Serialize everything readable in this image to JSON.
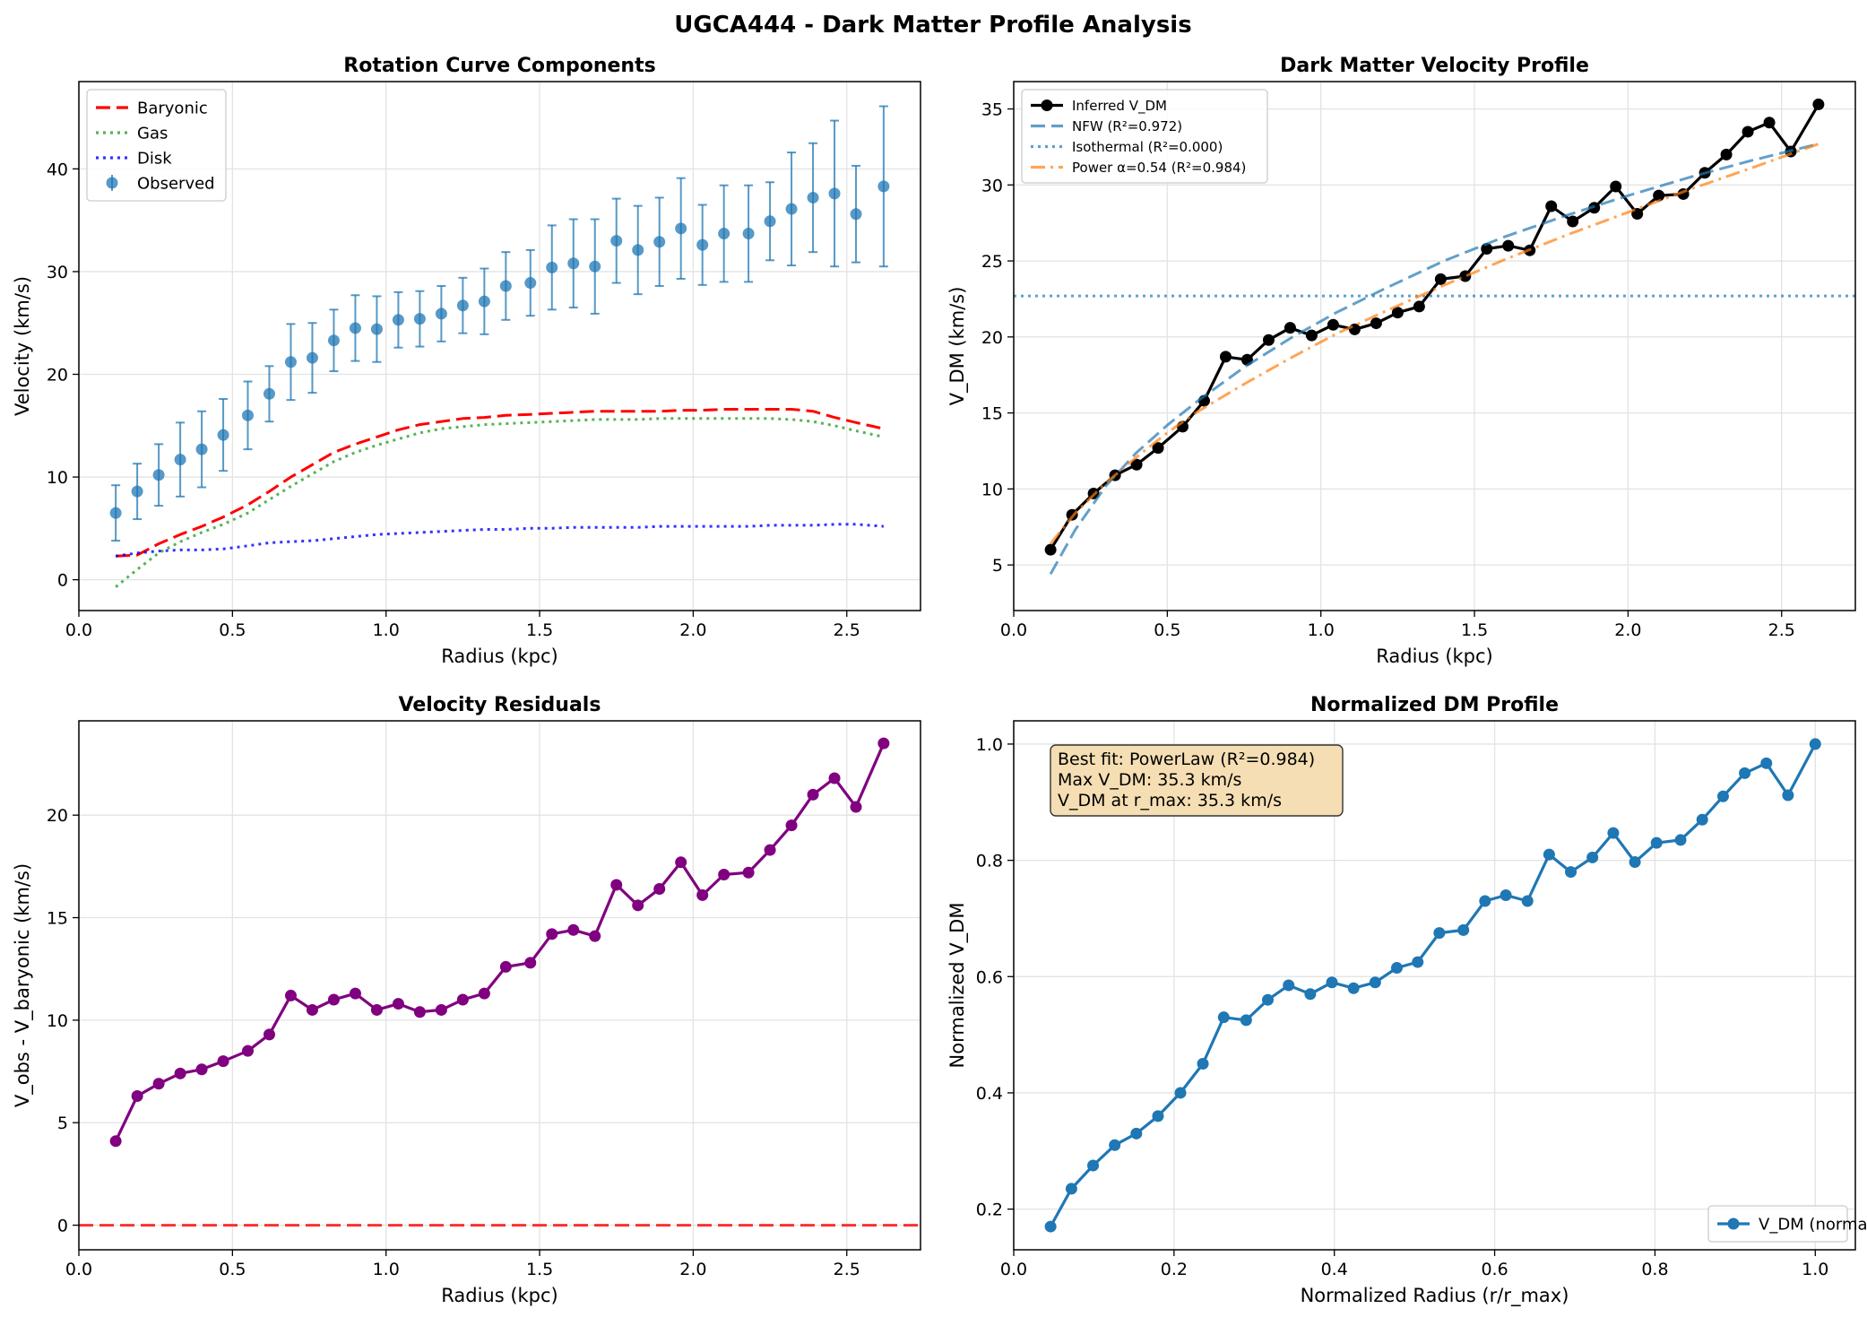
{
  "figure": {
    "title": "UGCA444 - Dark Matter Profile Analysis"
  },
  "colors": {
    "observed": "#1f77b4",
    "baryonic": "#ff0000",
    "gas": "#2ca02c",
    "disk": "#0000ff",
    "inferred": "#000000",
    "nfw": "#1f77b4",
    "isothermal": "#1f77b4",
    "power": "#ff7f0e",
    "residuals": "#800080",
    "zero_line": "#ff0000",
    "normalized": "#1f77b4",
    "annot_bg": "#f5deb3"
  },
  "chart_data": [
    {
      "type": "line",
      "title": "Rotation Curve Components",
      "xlabel": "Radius (kpc)",
      "ylabel": "Velocity (km/s)",
      "xlim": [
        0.0,
        2.74
      ],
      "ylim": [
        -3.0,
        48.5
      ],
      "xticks": [
        0.0,
        0.5,
        1.0,
        1.5,
        2.0,
        2.5
      ],
      "xtick_labels": [
        "0.0",
        "0.5",
        "1.0",
        "1.5",
        "2.0",
        "2.5"
      ],
      "yticks": [
        0,
        10,
        20,
        30,
        40
      ],
      "ytick_labels": [
        "0",
        "10",
        "20",
        "30",
        "40"
      ],
      "grid": true,
      "legend": "upper-left",
      "series": [
        {
          "name": "Baryonic",
          "kind": "line",
          "style": "dashed",
          "color_key": "baryonic",
          "x": [
            0.12,
            0.19,
            0.26,
            0.33,
            0.4,
            0.47,
            0.55,
            0.62,
            0.69,
            0.76,
            0.83,
            0.9,
            0.97,
            1.04,
            1.11,
            1.18,
            1.25,
            1.32,
            1.39,
            1.47,
            1.54,
            1.61,
            1.68,
            1.75,
            1.82,
            1.89,
            1.96,
            2.03,
            2.1,
            2.18,
            2.25,
            2.32,
            2.39,
            2.46,
            2.53,
            2.62
          ],
          "y": [
            2.3,
            2.4,
            3.5,
            4.4,
            5.2,
            6.1,
            7.3,
            8.6,
            10.0,
            11.2,
            12.4,
            13.2,
            13.9,
            14.6,
            15.1,
            15.4,
            15.7,
            15.8,
            16.0,
            16.1,
            16.2,
            16.3,
            16.4,
            16.4,
            16.4,
            16.4,
            16.5,
            16.5,
            16.6,
            16.6,
            16.6,
            16.6,
            16.4,
            15.8,
            15.3,
            14.7
          ]
        },
        {
          "name": "Gas",
          "kind": "line",
          "style": "dotted",
          "color_key": "gas",
          "x": [
            0.12,
            0.19,
            0.26,
            0.33,
            0.4,
            0.47,
            0.55,
            0.62,
            0.69,
            0.76,
            0.83,
            0.9,
            0.97,
            1.04,
            1.11,
            1.18,
            1.25,
            1.32,
            1.39,
            1.47,
            1.54,
            1.61,
            1.68,
            1.75,
            1.82,
            1.89,
            1.96,
            2.03,
            2.1,
            2.18,
            2.25,
            2.32,
            2.39,
            2.46,
            2.53,
            2.62
          ],
          "y": [
            -0.7,
            1.0,
            2.6,
            3.7,
            4.6,
            5.4,
            6.5,
            7.8,
            9.1,
            10.3,
            11.5,
            12.4,
            13.1,
            13.7,
            14.3,
            14.7,
            14.9,
            15.1,
            15.2,
            15.3,
            15.4,
            15.5,
            15.6,
            15.6,
            15.6,
            15.7,
            15.7,
            15.7,
            15.7,
            15.7,
            15.7,
            15.6,
            15.4,
            15.0,
            14.5,
            13.9
          ]
        },
        {
          "name": "Disk",
          "kind": "line",
          "style": "dotted",
          "color_key": "disk",
          "x": [
            0.12,
            0.19,
            0.26,
            0.33,
            0.4,
            0.47,
            0.55,
            0.62,
            0.69,
            0.76,
            0.83,
            0.9,
            0.97,
            1.04,
            1.11,
            1.18,
            1.25,
            1.32,
            1.39,
            1.47,
            1.54,
            1.61,
            1.68,
            1.75,
            1.82,
            1.89,
            1.96,
            2.03,
            2.1,
            2.18,
            2.25,
            2.32,
            2.39,
            2.46,
            2.53,
            2.62
          ],
          "y": [
            2.3,
            2.6,
            2.8,
            2.9,
            2.9,
            3.0,
            3.3,
            3.6,
            3.7,
            3.8,
            4.0,
            4.2,
            4.4,
            4.5,
            4.6,
            4.7,
            4.8,
            4.9,
            4.9,
            5.0,
            5.0,
            5.1,
            5.1,
            5.1,
            5.1,
            5.2,
            5.2,
            5.2,
            5.2,
            5.2,
            5.3,
            5.3,
            5.3,
            5.4,
            5.4,
            5.2
          ]
        },
        {
          "name": "Observed",
          "kind": "errorbar",
          "color_key": "observed",
          "x": [
            0.12,
            0.19,
            0.26,
            0.33,
            0.4,
            0.47,
            0.55,
            0.62,
            0.69,
            0.76,
            0.83,
            0.9,
            0.97,
            1.04,
            1.11,
            1.18,
            1.25,
            1.32,
            1.39,
            1.47,
            1.54,
            1.61,
            1.68,
            1.75,
            1.82,
            1.89,
            1.96,
            2.03,
            2.1,
            2.18,
            2.25,
            2.32,
            2.39,
            2.46,
            2.53,
            2.62
          ],
          "y": [
            6.5,
            8.6,
            10.2,
            11.7,
            12.7,
            14.1,
            16.0,
            18.1,
            21.2,
            21.6,
            23.3,
            24.5,
            24.4,
            25.3,
            25.4,
            25.9,
            26.7,
            27.1,
            28.6,
            28.9,
            30.4,
            30.8,
            30.5,
            33.0,
            32.1,
            32.9,
            34.2,
            32.6,
            33.7,
            33.7,
            34.9,
            36.1,
            37.2,
            37.6,
            35.6,
            38.3
          ],
          "err": [
            2.7,
            2.7,
            3.0,
            3.6,
            3.7,
            3.5,
            3.3,
            2.7,
            3.7,
            3.4,
            3.0,
            3.2,
            3.2,
            2.7,
            2.7,
            2.7,
            2.7,
            3.2,
            3.3,
            3.2,
            4.1,
            4.3,
            4.6,
            4.1,
            4.3,
            4.3,
            4.9,
            3.9,
            4.7,
            4.7,
            3.8,
            5.5,
            5.3,
            7.1,
            4.7,
            7.8
          ]
        }
      ]
    },
    {
      "type": "line",
      "title": "Dark Matter Velocity Profile",
      "xlabel": "Radius (kpc)",
      "ylabel": "V_DM (km/s)",
      "xlim": [
        0.0,
        2.74
      ],
      "ylim": [
        2.0,
        36.8
      ],
      "xticks": [
        0.0,
        0.5,
        1.0,
        1.5,
        2.0,
        2.5
      ],
      "xtick_labels": [
        "0.0",
        "0.5",
        "1.0",
        "1.5",
        "2.0",
        "2.5"
      ],
      "yticks": [
        5,
        10,
        15,
        20,
        25,
        30,
        35
      ],
      "ytick_labels": [
        "5",
        "10",
        "15",
        "20",
        "25",
        "30",
        "35"
      ],
      "grid": true,
      "legend": "upper-left",
      "series": [
        {
          "name": "Inferred V_DM",
          "kind": "line-marker",
          "style": "solid",
          "color_key": "inferred",
          "x": [
            0.12,
            0.19,
            0.26,
            0.33,
            0.4,
            0.47,
            0.55,
            0.62,
            0.69,
            0.76,
            0.83,
            0.9,
            0.97,
            1.04,
            1.11,
            1.18,
            1.25,
            1.32,
            1.39,
            1.47,
            1.54,
            1.61,
            1.68,
            1.75,
            1.82,
            1.89,
            1.96,
            2.03,
            2.1,
            2.18,
            2.25,
            2.32,
            2.39,
            2.46,
            2.53,
            2.62
          ],
          "y": [
            6.0,
            8.3,
            9.7,
            10.9,
            11.6,
            12.7,
            14.1,
            15.8,
            18.7,
            18.5,
            19.8,
            20.6,
            20.1,
            20.8,
            20.5,
            20.9,
            21.6,
            22.0,
            23.8,
            24.0,
            25.8,
            26.0,
            25.7,
            28.6,
            27.6,
            28.5,
            29.9,
            28.1,
            29.3,
            29.4,
            30.8,
            32.0,
            33.5,
            34.1,
            32.2,
            35.3
          ]
        },
        {
          "name": "NFW (R²=0.972)",
          "kind": "line",
          "style": "dashed",
          "color_key": "nfw",
          "x": [
            0.12,
            0.2,
            0.3,
            0.4,
            0.5,
            0.6,
            0.75,
            0.9,
            1.05,
            1.2,
            1.4,
            1.6,
            1.8,
            2.0,
            2.2,
            2.4,
            2.62
          ],
          "y": [
            4.4,
            7.3,
            10.2,
            12.4,
            14.2,
            15.8,
            18.0,
            19.9,
            21.6,
            23.1,
            25.0,
            26.6,
            28.0,
            29.3,
            30.5,
            31.6,
            32.7
          ]
        },
        {
          "name": "Isothermal (R²=0.000)",
          "kind": "line",
          "style": "dotted",
          "color_key": "isothermal",
          "x": [
            0.0,
            2.74
          ],
          "y": [
            22.7,
            22.7
          ]
        },
        {
          "name": "Power α=0.54 (R²=0.984)",
          "kind": "line",
          "style": "dashdot",
          "color_key": "power",
          "x": [
            0.12,
            0.2,
            0.3,
            0.4,
            0.5,
            0.6,
            0.75,
            0.9,
            1.05,
            1.2,
            1.4,
            1.6,
            1.8,
            2.0,
            2.2,
            2.4,
            2.62
          ],
          "y": [
            6.4,
            8.4,
            10.4,
            12.1,
            13.7,
            15.1,
            16.9,
            18.6,
            20.2,
            21.6,
            23.4,
            25.1,
            26.7,
            28.2,
            29.7,
            31.1,
            32.7
          ]
        }
      ]
    },
    {
      "type": "line",
      "title": "Velocity Residuals",
      "xlabel": "Radius (kpc)",
      "ylabel": "V_obs - V_baryonic (km/s)",
      "xlim": [
        0.0,
        2.74
      ],
      "ylim": [
        -1.2,
        24.6
      ],
      "xticks": [
        0.0,
        0.5,
        1.0,
        1.5,
        2.0,
        2.5
      ],
      "xtick_labels": [
        "0.0",
        "0.5",
        "1.0",
        "1.5",
        "2.0",
        "2.5"
      ],
      "yticks": [
        0,
        5,
        10,
        15,
        20
      ],
      "ytick_labels": [
        "0",
        "5",
        "10",
        "15",
        "20"
      ],
      "grid": true,
      "series": [
        {
          "kind": "line-marker",
          "style": "solid",
          "color_key": "residuals",
          "x": [
            0.12,
            0.19,
            0.26,
            0.33,
            0.4,
            0.47,
            0.55,
            0.62,
            0.69,
            0.76,
            0.83,
            0.9,
            0.97,
            1.04,
            1.11,
            1.18,
            1.25,
            1.32,
            1.39,
            1.47,
            1.54,
            1.61,
            1.68,
            1.75,
            1.82,
            1.89,
            1.96,
            2.03,
            2.1,
            2.18,
            2.25,
            2.32,
            2.39,
            2.46,
            2.53,
            2.62
          ],
          "y": [
            4.1,
            6.3,
            6.9,
            7.4,
            7.6,
            8.0,
            8.5,
            9.3,
            11.2,
            10.5,
            11.0,
            11.3,
            10.5,
            10.8,
            10.4,
            10.5,
            11.0,
            11.3,
            12.6,
            12.8,
            14.2,
            14.4,
            14.1,
            16.6,
            15.6,
            16.4,
            17.7,
            16.1,
            17.1,
            17.2,
            18.3,
            19.5,
            21.0,
            21.8,
            20.4,
            23.5
          ]
        },
        {
          "kind": "hline",
          "style": "dashed",
          "color_key": "zero_line",
          "x": [
            0.0,
            2.74
          ],
          "y": [
            0,
            0
          ]
        }
      ]
    },
    {
      "type": "line",
      "title": "Normalized DM Profile",
      "xlabel": "Normalized Radius (r/r_max)",
      "ylabel": "Normalized V_DM",
      "xlim": [
        0.0,
        1.05
      ],
      "ylim": [
        0.13,
        1.04
      ],
      "xticks": [
        0.0,
        0.2,
        0.4,
        0.6,
        0.8,
        1.0
      ],
      "xtick_labels": [
        "0.0",
        "0.2",
        "0.4",
        "0.6",
        "0.8",
        "1.0"
      ],
      "yticks": [
        0.2,
        0.4,
        0.6,
        0.8,
        1.0
      ],
      "ytick_labels": [
        "0.2",
        "0.4",
        "0.6",
        "0.8",
        "1.0"
      ],
      "grid": true,
      "legend": "lower-right",
      "annotation": [
        "Best fit: PowerLaw (R²=0.984)",
        "Max V_DM: 35.3 km/s",
        "V_DM at r_max: 35.3 km/s"
      ],
      "series": [
        {
          "name": "V_DM (normalized)",
          "kind": "line-marker",
          "style": "solid",
          "color_key": "normalized",
          "x": [
            0.046,
            0.072,
            0.099,
            0.126,
            0.153,
            0.18,
            0.208,
            0.236,
            0.262,
            0.29,
            0.317,
            0.343,
            0.37,
            0.397,
            0.424,
            0.451,
            0.478,
            0.504,
            0.531,
            0.561,
            0.588,
            0.614,
            0.641,
            0.668,
            0.695,
            0.722,
            0.748,
            0.775,
            0.802,
            0.832,
            0.859,
            0.885,
            0.912,
            0.939,
            0.966,
            1.0
          ],
          "y": [
            0.17,
            0.235,
            0.275,
            0.31,
            0.33,
            0.36,
            0.4,
            0.45,
            0.53,
            0.525,
            0.56,
            0.585,
            0.57,
            0.59,
            0.58,
            0.59,
            0.615,
            0.625,
            0.675,
            0.68,
            0.73,
            0.74,
            0.73,
            0.81,
            0.78,
            0.805,
            0.847,
            0.797,
            0.83,
            0.835,
            0.87,
            0.91,
            0.95,
            0.967,
            0.912,
            1.0
          ]
        }
      ]
    }
  ]
}
